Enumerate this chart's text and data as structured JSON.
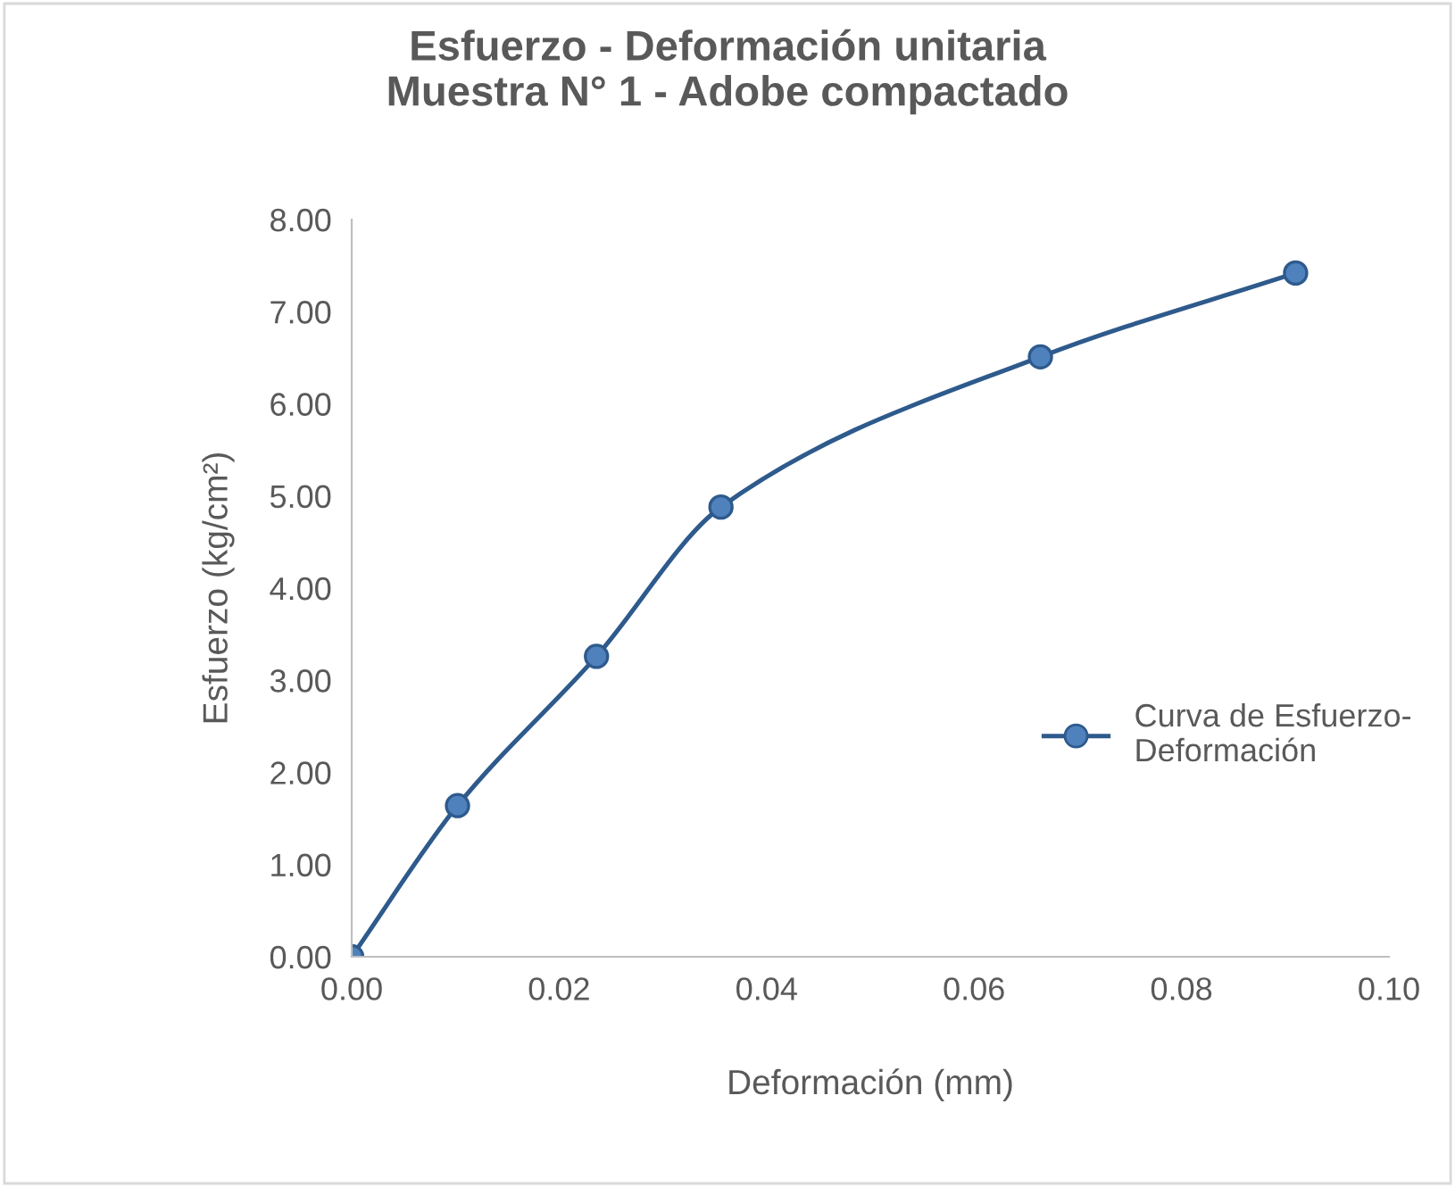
{
  "chart_data": {
    "type": "line",
    "title": "Esfuerzo - Deformación unitaria\nMuestra N° 1 - Adobe compactado",
    "xlabel": "Deformación (mm)",
    "ylabel": "Esfuerzo (kg/cm²)",
    "x": [
      0.0,
      0.0102,
      0.0236,
      0.0356,
      0.0664,
      0.091
    ],
    "series": [
      {
        "name": "Curva de Esfuerzo-\nDeformación",
        "color": "#2e5a8c",
        "values": [
          0.0,
          1.64,
          3.26,
          4.88,
          6.51,
          7.42
        ]
      }
    ],
    "xlim": [
      0,
      0.1
    ],
    "ylim": [
      0,
      8
    ],
    "xticks": [
      {
        "value": 0,
        "label": "0.00"
      },
      {
        "value": 0.02,
        "label": "0.02"
      },
      {
        "value": 0.04,
        "label": "0.04"
      },
      {
        "value": 0.06,
        "label": "0.06"
      },
      {
        "value": 0.08,
        "label": "0.08"
      },
      {
        "value": 0.1,
        "label": "0.10"
      }
    ],
    "yticks": [
      {
        "value": 0,
        "label": "0.00"
      },
      {
        "value": 1,
        "label": "1.00"
      },
      {
        "value": 2,
        "label": "2.00"
      },
      {
        "value": 3,
        "label": "3.00"
      },
      {
        "value": 4,
        "label": "4.00"
      },
      {
        "value": 5,
        "label": "5.00"
      },
      {
        "value": 6,
        "label": "6.00"
      },
      {
        "value": 7,
        "label": "7.00"
      },
      {
        "value": 8,
        "label": "8.00"
      }
    ],
    "marker": "circle",
    "line_style": "solid",
    "grid": false,
    "legend": "right"
  }
}
